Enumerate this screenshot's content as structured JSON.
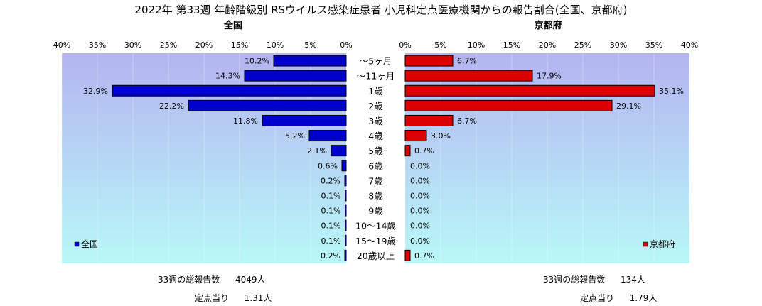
{
  "title": "2022年 第33週 年齢階級別 RSウイルス感染症患者 小児科定点医療機関からの報告割合(全国、京都府)",
  "colors": {
    "national": "#0000cc",
    "kyoto": "#dd0000",
    "plot_bg_top": "#b4b4f0",
    "plot_bg_bottom": "#b8f8f8"
  },
  "chart_data": [
    {
      "type": "bar",
      "orientation": "horizontal",
      "direction": "leftward",
      "panel_title": "全国",
      "legend_label": "全国",
      "legend_position": "bottom-left",
      "categories": [
        "～5ヶ月",
        "～11ヶ月",
        "1歳",
        "2歳",
        "3歳",
        "4歳",
        "5歳",
        "6歳",
        "7歳",
        "8歳",
        "9歳",
        "10～14歳",
        "15～19歳",
        "20歳以上"
      ],
      "values": [
        10.2,
        14.3,
        32.9,
        22.2,
        11.8,
        5.2,
        2.1,
        0.6,
        0.2,
        0.1,
        0.1,
        0.1,
        0.1,
        0.2
      ],
      "value_labels": [
        "10.2%",
        "14.3%",
        "32.9%",
        "22.2%",
        "11.8%",
        "5.2%",
        "2.1%",
        "0.6%",
        "0.2%",
        "0.1%",
        "0.1%",
        "0.1%",
        "0.1%",
        "0.2%"
      ],
      "xlim": [
        0,
        40
      ],
      "ticks": [
        0,
        5,
        10,
        15,
        20,
        25,
        30,
        35,
        40
      ],
      "tick_labels": [
        "0%",
        "5%",
        "10%",
        "15%",
        "20%",
        "25%",
        "30%",
        "35%",
        "40%"
      ]
    },
    {
      "type": "bar",
      "orientation": "horizontal",
      "direction": "rightward",
      "panel_title": "京都府",
      "legend_label": "京都府",
      "legend_position": "bottom-right",
      "categories": [
        "～5ヶ月",
        "～11ヶ月",
        "1歳",
        "2歳",
        "3歳",
        "4歳",
        "5歳",
        "6歳",
        "7歳",
        "8歳",
        "9歳",
        "10～14歳",
        "15～19歳",
        "20歳以上"
      ],
      "values": [
        6.7,
        17.9,
        35.1,
        29.1,
        6.7,
        3.0,
        0.7,
        0.0,
        0.0,
        0.0,
        0.0,
        0.0,
        0.0,
        0.7
      ],
      "value_labels": [
        "6.7%",
        "17.9%",
        "35.1%",
        "29.1%",
        "6.7%",
        "3.0%",
        "0.7%",
        "0.0%",
        "0.0%",
        "0.0%",
        "0.0%",
        "0.0%",
        "0.0%",
        "0.7%"
      ],
      "xlim": [
        0,
        40
      ],
      "ticks": [
        0,
        5,
        10,
        15,
        20,
        25,
        30,
        35,
        40
      ],
      "tick_labels": [
        "0%",
        "5%",
        "10%",
        "15%",
        "20%",
        "25%",
        "30%",
        "35%",
        "40%"
      ]
    }
  ],
  "footer": {
    "national": {
      "total_label": "33週の総報告数",
      "total_value": "4049人",
      "per_site_label": "定点当り",
      "per_site_value": "1.31人"
    },
    "kyoto": {
      "total_label": "33週の総報告数",
      "total_value": "134人",
      "per_site_label": "定点当り",
      "per_site_value": "1.79人"
    }
  }
}
